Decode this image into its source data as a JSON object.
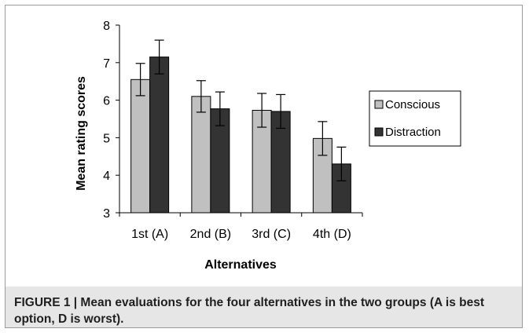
{
  "chart_data": {
    "type": "bar",
    "categories": [
      "1st (A)",
      "2nd (B)",
      "3rd (C)",
      "4th (D)"
    ],
    "series": [
      {
        "name": "Conscious",
        "values": [
          6.55,
          6.1,
          5.73,
          4.98
        ],
        "errors": [
          0.43,
          0.42,
          0.45,
          0.45
        ],
        "color": "#c0c0c0"
      },
      {
        "name": "Distraction",
        "values": [
          7.15,
          5.77,
          5.7,
          4.3
        ],
        "errors": [
          0.45,
          0.45,
          0.45,
          0.45
        ],
        "color": "#333333"
      }
    ],
    "xlabel": "Alternatives",
    "ylabel": "Mean rating scores",
    "ylim": [
      3,
      8
    ],
    "yticks": [
      "3",
      "4",
      "5",
      "6",
      "7",
      "8"
    ],
    "grid": false,
    "legend_position": "right"
  },
  "caption": {
    "text": "FIGURE 1 | Mean evaluations for the four alternatives in the two groups (A is best option, D is worst)."
  }
}
